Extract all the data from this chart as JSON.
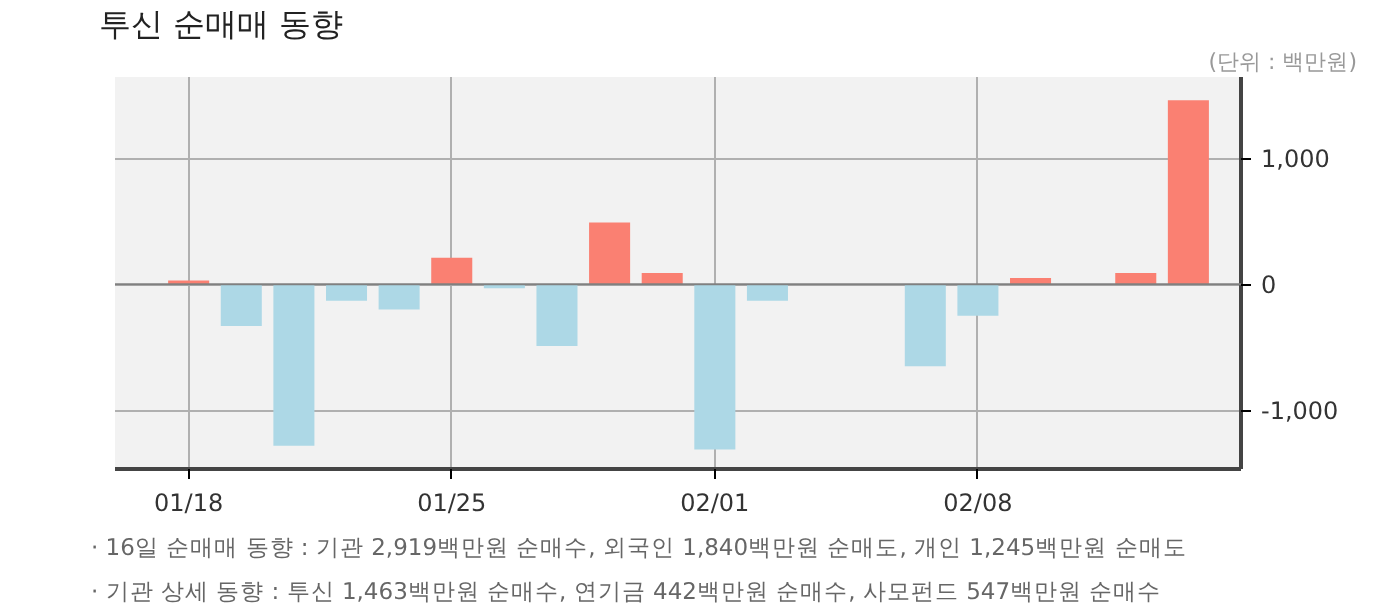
{
  "chart_data": {
    "type": "bar",
    "title": "투신 순매매 동향",
    "subtitle": "(단위 : 백만원)",
    "categories": [
      "01/18",
      null,
      null,
      null,
      null,
      "01/25",
      null,
      null,
      null,
      null,
      "02/01",
      null,
      null,
      null,
      null,
      "02/08",
      null,
      null,
      null,
      null
    ],
    "values": [
      30,
      -330,
      -1280,
      -130,
      -200,
      210,
      -30,
      -490,
      490,
      90,
      -1310,
      -130,
      null,
      null,
      -650,
      -250,
      50,
      null,
      90,
      1460
    ],
    "colors": [
      "#fa8072",
      "#add8e6",
      "#add8e6",
      "#add8e6",
      "#add8e6",
      "#fa8072",
      "#add8e6",
      "#add8e6",
      "#fa8072",
      "#fa8072",
      "#add8e6",
      "#add8e6",
      "#add8e6",
      "#add8e6",
      "#add8e6",
      "#add8e6",
      "#fa8072",
      "#fa8072",
      "#fa8072",
      "#fa8072"
    ],
    "ylim": [
      -1465,
      1645
    ],
    "yticks": [
      {
        "value": -1000,
        "label": "-1,000"
      },
      0,
      {
        "value": 1000,
        "label": "1,000"
      }
    ],
    "grid": true,
    "ref_lines": [
      {
        "axis": "y",
        "value": 0,
        "color": "#808080"
      }
    ],
    "annotations": [
      "· 16일 순매매 동향 : 기관 2,919백만원 순매수, 외국인 1,840백만원 순매도, 개인 1,245백만원 순매도",
      "· 기관 상세 동향 : 투신 1,463백만원 순매수, 연기금 442백만원 순매수, 사모펀드 547백만원 순매수"
    ]
  }
}
